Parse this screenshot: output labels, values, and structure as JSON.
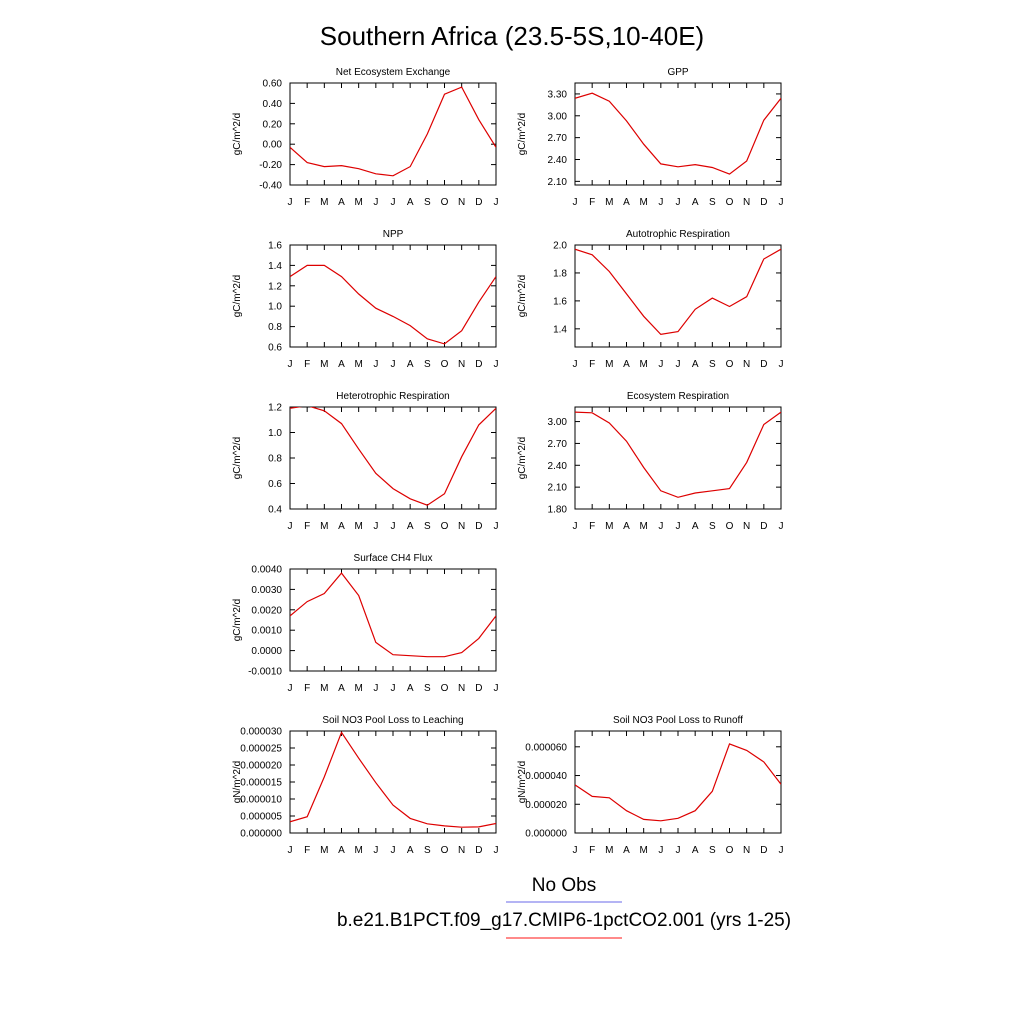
{
  "figure": {
    "title": "Southern Africa (23.5-5S,10-40E)",
    "legend": [
      {
        "label": "No Obs",
        "color": "#8888ee"
      },
      {
        "label": "b.e21.B1PCT.f09_g17.CMIP6-1pctCO2.001 (yrs 1-25)",
        "color": "#ff4444"
      }
    ]
  },
  "series_color": "#dd0000",
  "chart_data": [
    {
      "type": "line",
      "title": "Net Ecosystem Exchange",
      "ylabel": "gC/m^2/d",
      "categories": [
        "J",
        "F",
        "M",
        "A",
        "M",
        "J",
        "J",
        "A",
        "S",
        "O",
        "N",
        "D",
        "J"
      ],
      "values": [
        -0.03,
        -0.18,
        -0.22,
        -0.21,
        -0.24,
        -0.29,
        -0.31,
        -0.22,
        0.1,
        0.49,
        0.56,
        0.24,
        -0.03
      ],
      "ylim": [
        -0.4,
        0.6
      ],
      "yticks": [
        -0.4,
        -0.2,
        0.0,
        0.2,
        0.4,
        0.6
      ],
      "ytick_labels": [
        "-0.40",
        "-0.20",
        "0.00",
        "0.20",
        "0.40",
        "0.60"
      ]
    },
    {
      "type": "line",
      "title": "GPP",
      "ylabel": "gC/m^2/d",
      "categories": [
        "J",
        "F",
        "M",
        "A",
        "M",
        "J",
        "J",
        "A",
        "S",
        "O",
        "N",
        "D",
        "J"
      ],
      "values": [
        3.24,
        3.31,
        3.2,
        2.93,
        2.61,
        2.34,
        2.3,
        2.33,
        2.29,
        2.2,
        2.38,
        2.94,
        3.24
      ],
      "ylim": [
        2.05,
        3.45
      ],
      "yticks": [
        2.1,
        2.4,
        2.7,
        3.0,
        3.3
      ],
      "ytick_labels": [
        "2.10",
        "2.40",
        "2.70",
        "3.00",
        "3.30"
      ]
    },
    {
      "type": "line",
      "title": "NPP",
      "ylabel": "gC/m^2/d",
      "categories": [
        "J",
        "F",
        "M",
        "A",
        "M",
        "J",
        "J",
        "A",
        "S",
        "O",
        "N",
        "D",
        "J"
      ],
      "values": [
        1.29,
        1.4,
        1.4,
        1.29,
        1.12,
        0.98,
        0.9,
        0.81,
        0.68,
        0.63,
        0.76,
        1.04,
        1.29
      ],
      "ylim": [
        0.6,
        1.6
      ],
      "yticks": [
        0.6,
        0.8,
        1.0,
        1.2,
        1.4,
        1.6
      ],
      "ytick_labels": [
        "0.6",
        "0.8",
        "1.0",
        "1.2",
        "1.4",
        "1.6"
      ]
    },
    {
      "type": "line",
      "title": "Autotrophic Respiration",
      "ylabel": "gC/m^2/d",
      "categories": [
        "J",
        "F",
        "M",
        "A",
        "M",
        "J",
        "J",
        "A",
        "S",
        "O",
        "N",
        "D",
        "J"
      ],
      "values": [
        1.97,
        1.93,
        1.81,
        1.65,
        1.49,
        1.36,
        1.38,
        1.54,
        1.62,
        1.56,
        1.63,
        1.9,
        1.97
      ],
      "ylim": [
        1.27,
        2.0
      ],
      "yticks": [
        1.4,
        1.6,
        1.8,
        2.0
      ],
      "ytick_labels": [
        "1.4",
        "1.6",
        "1.8",
        "2.0"
      ]
    },
    {
      "type": "line",
      "title": "Heterotrophic Respiration",
      "ylabel": "gC/m^2/d",
      "categories": [
        "J",
        "F",
        "M",
        "A",
        "M",
        "J",
        "J",
        "A",
        "S",
        "O",
        "N",
        "D",
        "J"
      ],
      "values": [
        1.19,
        1.21,
        1.17,
        1.07,
        0.87,
        0.68,
        0.56,
        0.48,
        0.43,
        0.52,
        0.81,
        1.06,
        1.19
      ],
      "ylim": [
        0.4,
        1.2
      ],
      "yticks": [
        0.4,
        0.6,
        0.8,
        1.0,
        1.2
      ],
      "ytick_labels": [
        "0.4",
        "0.6",
        "0.8",
        "1.0",
        "1.2"
      ]
    },
    {
      "type": "line",
      "title": "Ecosystem Respiration",
      "ylabel": "gC/m^2/d",
      "categories": [
        "J",
        "F",
        "M",
        "A",
        "M",
        "J",
        "J",
        "A",
        "S",
        "O",
        "N",
        "D",
        "J"
      ],
      "values": [
        3.13,
        3.12,
        2.98,
        2.73,
        2.37,
        2.05,
        1.96,
        2.02,
        2.05,
        2.08,
        2.44,
        2.96,
        3.13
      ],
      "ylim": [
        1.8,
        3.2
      ],
      "yticks": [
        1.8,
        2.1,
        2.4,
        2.7,
        3.0
      ],
      "ytick_labels": [
        "1.80",
        "2.10",
        "2.40",
        "2.70",
        "3.00"
      ]
    },
    {
      "type": "line",
      "title": "Surface CH4 Flux",
      "ylabel": "gC/m^2/d",
      "categories": [
        "J",
        "F",
        "M",
        "A",
        "M",
        "J",
        "J",
        "A",
        "S",
        "O",
        "N",
        "D",
        "J"
      ],
      "values": [
        0.0017,
        0.0024,
        0.0028,
        0.0038,
        0.0027,
        0.0004,
        -0.0002,
        -0.00025,
        -0.0003,
        -0.0003,
        -0.0001,
        0.0006,
        0.0017
      ],
      "ylim": [
        -0.001,
        0.004
      ],
      "yticks": [
        -0.001,
        0.0,
        0.001,
        0.002,
        0.003,
        0.004
      ],
      "ytick_labels": [
        "-0.0010",
        "0.0000",
        "0.0010",
        "0.0020",
        "0.0030",
        "0.0040"
      ]
    },
    {
      "type": "line",
      "title": "Soil NO3 Pool Loss to Leaching",
      "ylabel": "gN/m^2/d",
      "categories": [
        "J",
        "F",
        "M",
        "A",
        "M",
        "J",
        "J",
        "A",
        "S",
        "O",
        "N",
        "D",
        "J"
      ],
      "values": [
        3.3e-06,
        4.8e-06,
        1.65e-05,
        2.96e-05,
        2.2e-05,
        1.48e-05,
        8.2e-06,
        4.3e-06,
        2.7e-06,
        2.1e-06,
        1.7e-06,
        1.8e-06,
        2.8e-06
      ],
      "ylim": [
        0.0,
        3e-05
      ],
      "yticks": [
        0.0,
        5e-06,
        1e-05,
        1.5e-05,
        2e-05,
        2.5e-05,
        3e-05
      ],
      "ytick_labels": [
        "0.000000",
        "0.000005",
        "0.000010",
        "0.000015",
        "0.000020",
        "0.000025",
        "0.000030"
      ]
    },
    {
      "type": "line",
      "title": "Soil NO3 Pool Loss to Runoff",
      "ylabel": "gN/m^2/d",
      "categories": [
        "J",
        "F",
        "M",
        "A",
        "M",
        "J",
        "J",
        "A",
        "S",
        "O",
        "N",
        "D",
        "J"
      ],
      "values": [
        3.35e-05,
        2.55e-05,
        2.45e-05,
        1.55e-05,
        9.5e-06,
        8.5e-06,
        1.02e-05,
        1.55e-05,
        2.9e-05,
        6.2e-05,
        5.75e-05,
        4.95e-05,
        3.4e-05
      ],
      "ylim": [
        0.0,
        7.1e-05
      ],
      "yticks": [
        0.0,
        2e-05,
        4e-05,
        6e-05
      ],
      "ytick_labels": [
        "0.000000",
        "0.000020",
        "0.000040",
        "0.000060"
      ]
    }
  ]
}
